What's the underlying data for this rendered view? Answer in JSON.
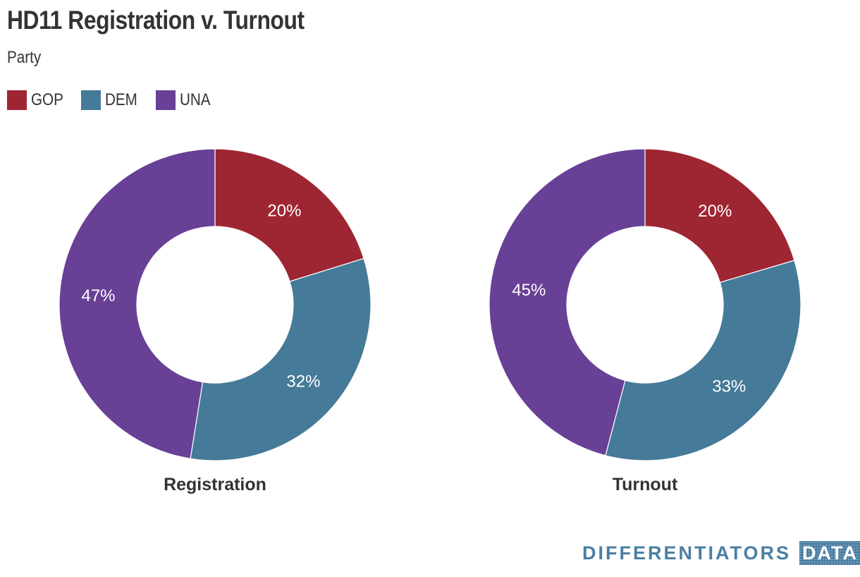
{
  "title": "HD11 Registration v. Turnout",
  "subtitle": "Party",
  "colors": {
    "GOP": "#9e2632",
    "DEM": "#457a99",
    "UNA": "#684096"
  },
  "legend": [
    {
      "label": "GOP",
      "color": "#9e2632"
    },
    {
      "label": "DEM",
      "color": "#457a99"
    },
    {
      "label": "UNA",
      "color": "#684096"
    }
  ],
  "chart_data": [
    {
      "type": "pie",
      "donut": true,
      "name": "Registration",
      "categories": [
        "GOP",
        "DEM",
        "UNA"
      ],
      "values": [
        20,
        32,
        47
      ],
      "labels": [
        "20%",
        "32%",
        "47%"
      ]
    },
    {
      "type": "pie",
      "donut": true,
      "name": "Turnout",
      "categories": [
        "GOP",
        "DEM",
        "UNA"
      ],
      "values": [
        20,
        33,
        45
      ],
      "labels": [
        "20%",
        "33%",
        "45%"
      ]
    }
  ],
  "branding": {
    "wordmark": "DIFFERENTIATORS",
    "box": "DATA"
  }
}
